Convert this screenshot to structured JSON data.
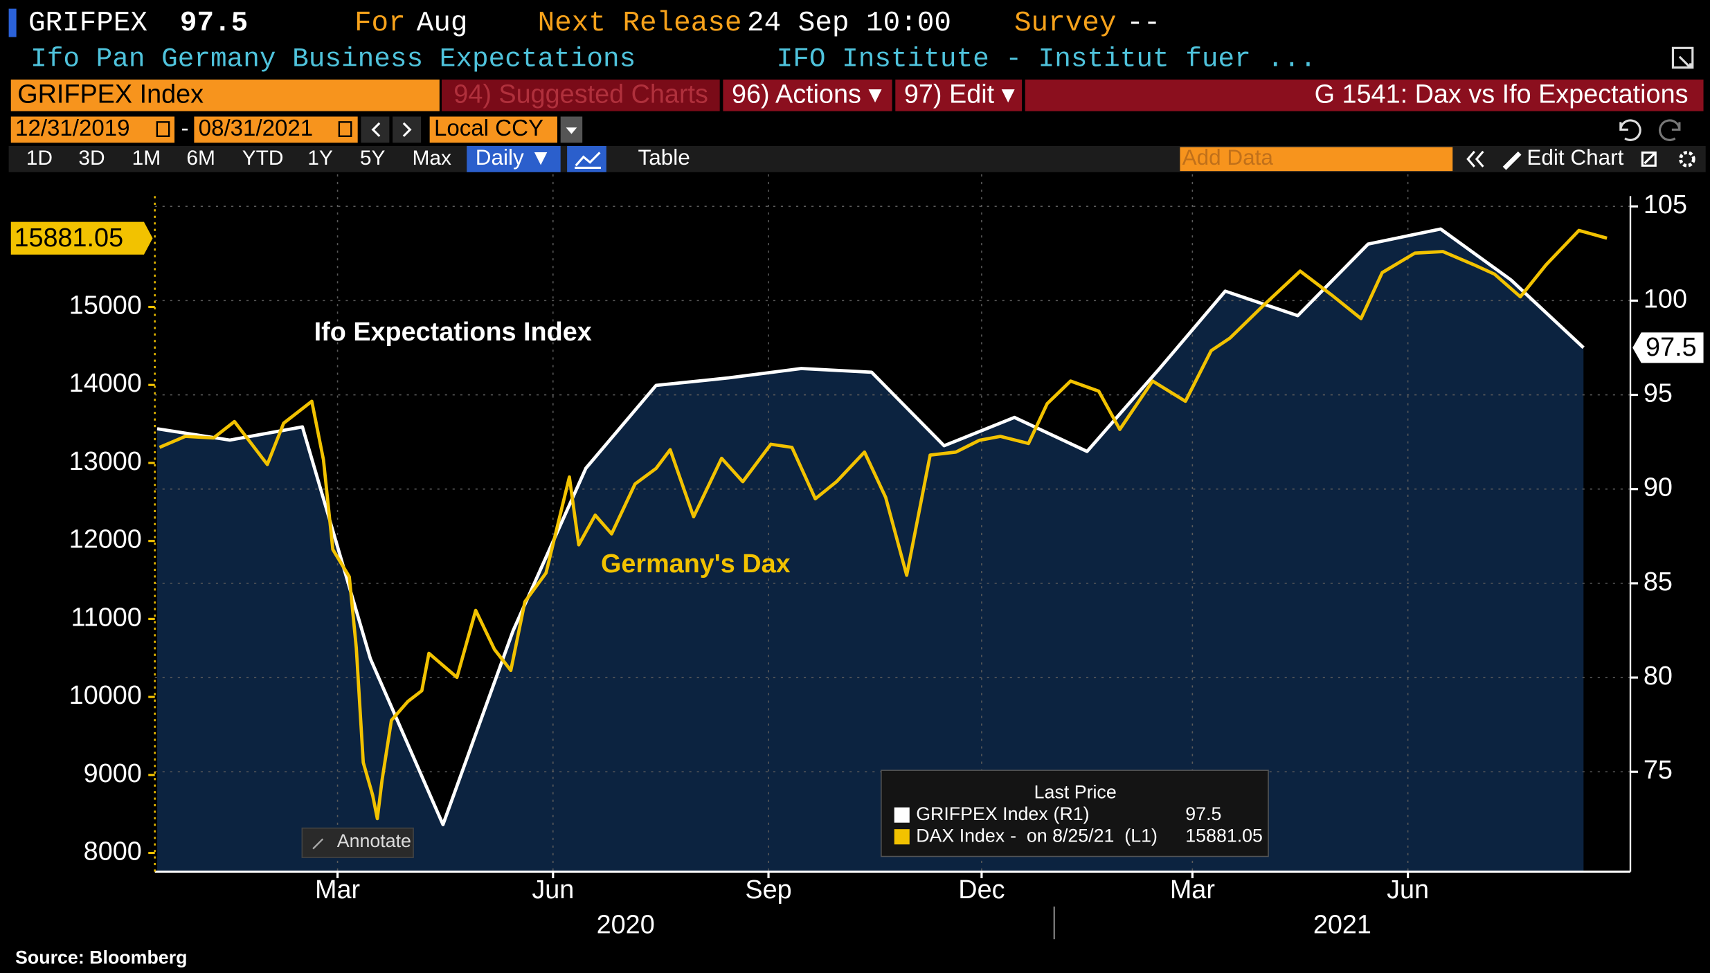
{
  "header": {
    "ticker": "GRIFPEX",
    "period_label": "For",
    "period": "Aug",
    "release_label": "Next Release",
    "release": "24 Sep 10:00",
    "survey_label": "Survey",
    "survey": "--",
    "description": "Ifo Pan Germany Business Expectations",
    "source_org": "IFO Institute - Institut fuer ..."
  },
  "toolbar": {
    "security": "GRIFPEX Index",
    "menu": [
      "94) Suggested Charts",
      "96) Actions ▾",
      "97) Edit ▾"
    ],
    "chart_name": "G 1541: Dax vs Ifo Expectations",
    "start_date": "12/31/2019",
    "separator": "-",
    "end_date": "08/31/2021",
    "currency": "Local CCY",
    "ranges": [
      "1D",
      "3D",
      "1M",
      "6M",
      "YTD",
      "1Y",
      "5Y",
      "Max"
    ],
    "frequency": "Daily ▼",
    "table": "Table",
    "add_data": "Add Data",
    "edit_chart": "Edit Chart",
    "annotate": "Annotate"
  },
  "chart_data": {
    "type": "line",
    "grid": true,
    "series": [
      {
        "name": "GRIFPEX Index",
        "color": "#ffffff",
        "fill": "#0c2340",
        "axis": "y2",
        "x": [
          "2019-12",
          "2020-01",
          "2020-02",
          "2020-03",
          "2020-04",
          "2020-05",
          "2020-06",
          "2020-07",
          "2020-08",
          "2020-09",
          "2020-10",
          "2020-11",
          "2020-12",
          "2021-01",
          "2021-02",
          "2021-03",
          "2021-04",
          "2021-05",
          "2021-06",
          "2021-07",
          "2021-08"
        ],
        "values": [
          93.2,
          92.6,
          93.3,
          81.0,
          72.2,
          82.5,
          91.1,
          95.5,
          95.9,
          96.4,
          96.2,
          92.3,
          93.8,
          92.0,
          96.4,
          100.5,
          99.2,
          103.0,
          103.8,
          101.1,
          97.5
        ]
      },
      {
        "name": "DAX Index",
        "color": "#f2c200",
        "x": [
          "2019-12-16",
          "2019-12-27",
          "2020-01-08",
          "2020-01-17",
          "2020-01-31",
          "2020-02-07",
          "2020-02-19",
          "2020-02-24",
          "2020-02-28",
          "2020-03-06",
          "2020-03-09",
          "2020-03-12",
          "2020-03-16",
          "2020-03-18",
          "2020-03-20",
          "2020-03-24",
          "2020-03-31",
          "2020-04-06",
          "2020-04-09",
          "2020-04-21",
          "2020-04-29",
          "2020-05-07",
          "2020-05-14",
          "2020-05-20",
          "2020-05-29",
          "2020-06-08",
          "2020-06-12",
          "2020-06-19",
          "2020-06-26",
          "2020-07-06",
          "2020-07-15",
          "2020-07-21",
          "2020-07-31",
          "2020-08-12",
          "2020-08-21",
          "2020-09-02",
          "2020-09-11",
          "2020-09-21",
          "2020-09-30",
          "2020-10-12",
          "2020-10-21",
          "2020-10-30",
          "2020-11-09",
          "2020-11-20",
          "2020-11-30",
          "2020-12-09",
          "2020-12-21",
          "2020-12-29",
          "2021-01-08",
          "2021-01-20",
          "2021-01-29",
          "2021-02-12",
          "2021-02-26",
          "2021-03-09",
          "2021-03-17",
          "2021-03-31",
          "2021-04-16",
          "2021-04-30",
          "2021-05-12",
          "2021-05-21",
          "2021-06-04",
          "2021-06-16",
          "2021-06-30",
          "2021-07-08",
          "2021-07-19",
          "2021-07-30",
          "2021-08-13",
          "2021-08-25"
        ],
        "values": [
          13200,
          13340,
          13320,
          13530,
          12980,
          13510,
          13790,
          13040,
          11890,
          11540,
          10630,
          9160,
          8740,
          8440,
          8930,
          9700,
          9940,
          10080,
          10560,
          10250,
          11110,
          10610,
          10340,
          11220,
          11590,
          12820,
          11950,
          12330,
          12090,
          12730,
          12930,
          13170,
          12310,
          13060,
          12760,
          13240,
          13200,
          12540,
          12760,
          13140,
          12560,
          11560,
          13100,
          13140,
          13290,
          13340,
          13250,
          13760,
          14050,
          13920,
          13430,
          14050,
          13790,
          14440,
          14600,
          15010,
          15460,
          15140,
          14850,
          15440,
          15690,
          15710,
          15530,
          15420,
          15130,
          15540,
          15980,
          15881.05
        ]
      }
    ],
    "xlim": [
      "2019-12-14",
      "2021-09-04"
    ],
    "xticks": [
      {
        "value": "2020-03",
        "label": "Mar"
      },
      {
        "value": "2020-06",
        "label": "Jun"
      },
      {
        "value": "2020-09",
        "label": "Sep"
      },
      {
        "value": "2020-12",
        "label": "Dec"
      },
      {
        "value": "2021-03",
        "label": "Mar"
      },
      {
        "value": "2021-06",
        "label": "Jun"
      }
    ],
    "years": [
      "2020",
      "2021"
    ],
    "ylim": [
      7760,
      16700
    ],
    "yticks": [
      8000,
      9000,
      10000,
      11000,
      12000,
      13000,
      14000,
      15000
    ],
    "y2lim": [
      69.7,
      106.7
    ],
    "y2ticks": [
      75,
      80,
      85,
      90,
      95,
      100,
      105
    ],
    "annotations": [
      "Ifo Expectations Index",
      "Germany's Dax"
    ],
    "legend": {
      "title": "Last Price",
      "notes": [
        "(R1)",
        "-  on 8/25/21  (L1)"
      ]
    }
  },
  "footer": {
    "source": "Source: Bloomberg"
  }
}
